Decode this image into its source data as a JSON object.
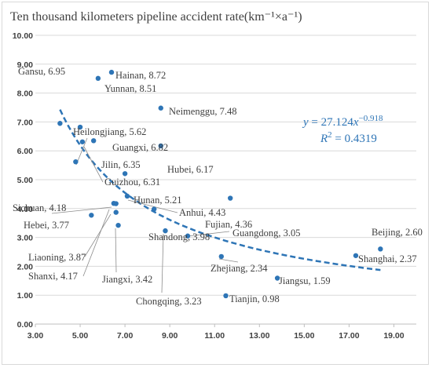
{
  "chart_data": {
    "type": "scatter",
    "title": "Ten thousand kilometers pipeline accident rate(km⁻¹×a⁻¹)",
    "xlabel": "",
    "ylabel": "",
    "xlim": [
      3,
      20
    ],
    "ylim": [
      0,
      10
    ],
    "x_ticks": [
      "3.00",
      "5.00",
      "7.00",
      "9.00",
      "11.00",
      "13.00",
      "15.00",
      "17.00",
      "19.00"
    ],
    "y_ticks": [
      "0.00",
      "1.00",
      "2.00",
      "3.00",
      "4.00",
      "5.00",
      "6.00",
      "7.00",
      "8.00",
      "9.00",
      "10.00"
    ],
    "grid": "horizontal",
    "marker_color": "#2e75b6",
    "trendline": {
      "type": "power",
      "a": 27.124,
      "b": -0.918,
      "x_range": [
        4.1,
        18.4
      ],
      "style": "dashed",
      "color": "#2e75b6",
      "equation_text": "y = 27.124x⁻⁰·⁹¹⁸",
      "r2_text": "R² = 0.4319"
    },
    "points": [
      {
        "label": "Gansu, 6.95",
        "x": 4.1,
        "y": 6.95
      },
      {
        "label": "Hainan, 8.72",
        "x": 6.4,
        "y": 8.72
      },
      {
        "label": "Yunnan, 8.51",
        "x": 5.8,
        "y": 8.51
      },
      {
        "label": "Heilongjiang, 5.62",
        "x": 4.8,
        "y": 5.62
      },
      {
        "label": "Guangxi, 6.82",
        "x": 5.0,
        "y": 6.82
      },
      {
        "label": "Neimenggu, 7.48",
        "x": 8.6,
        "y": 7.48
      },
      {
        "label": "Jilin, 6.35",
        "x": 5.6,
        "y": 6.35
      },
      {
        "label": "Guizhou, 6.31",
        "x": 5.1,
        "y": 6.31
      },
      {
        "label": "Hubei, 6.17",
        "x": 8.6,
        "y": 6.17
      },
      {
        "label": "Hunan, 5.21",
        "x": 7.0,
        "y": 5.21
      },
      {
        "label": "Sichuan, 4.18",
        "x": 6.5,
        "y": 4.18
      },
      {
        "label": "Anhui, 4.43",
        "x": 7.1,
        "y": 4.43
      },
      {
        "label": "Fujian, 4.36",
        "x": 11.7,
        "y": 4.36
      },
      {
        "label": "Hebei, 3.77",
        "x": 5.5,
        "y": 3.77
      },
      {
        "label": "Shandong, 3.98",
        "x": 8.3,
        "y": 3.98
      },
      {
        "label": "Liaoning, 3.87",
        "x": 6.6,
        "y": 3.87
      },
      {
        "label": "Shanxi, 4.17",
        "x": 6.6,
        "y": 4.17
      },
      {
        "label": "Jiangxi, 3.42",
        "x": 6.7,
        "y": 3.42
      },
      {
        "label": "Guangdong, 3.05",
        "x": 9.8,
        "y": 3.05
      },
      {
        "label": "Beijing, 2.60",
        "x": 18.4,
        "y": 2.6
      },
      {
        "label": "Shanghai, 2.37",
        "x": 17.3,
        "y": 2.37
      },
      {
        "label": "Chongqing, 3.23",
        "x": 8.8,
        "y": 3.23
      },
      {
        "label": "Zhejiang, 2.34",
        "x": 11.3,
        "y": 2.34
      },
      {
        "label": "Jiangsu, 1.59",
        "x": 13.8,
        "y": 1.59
      },
      {
        "label": "Tianjin, 0.98",
        "x": 11.5,
        "y": 0.98
      }
    ]
  }
}
